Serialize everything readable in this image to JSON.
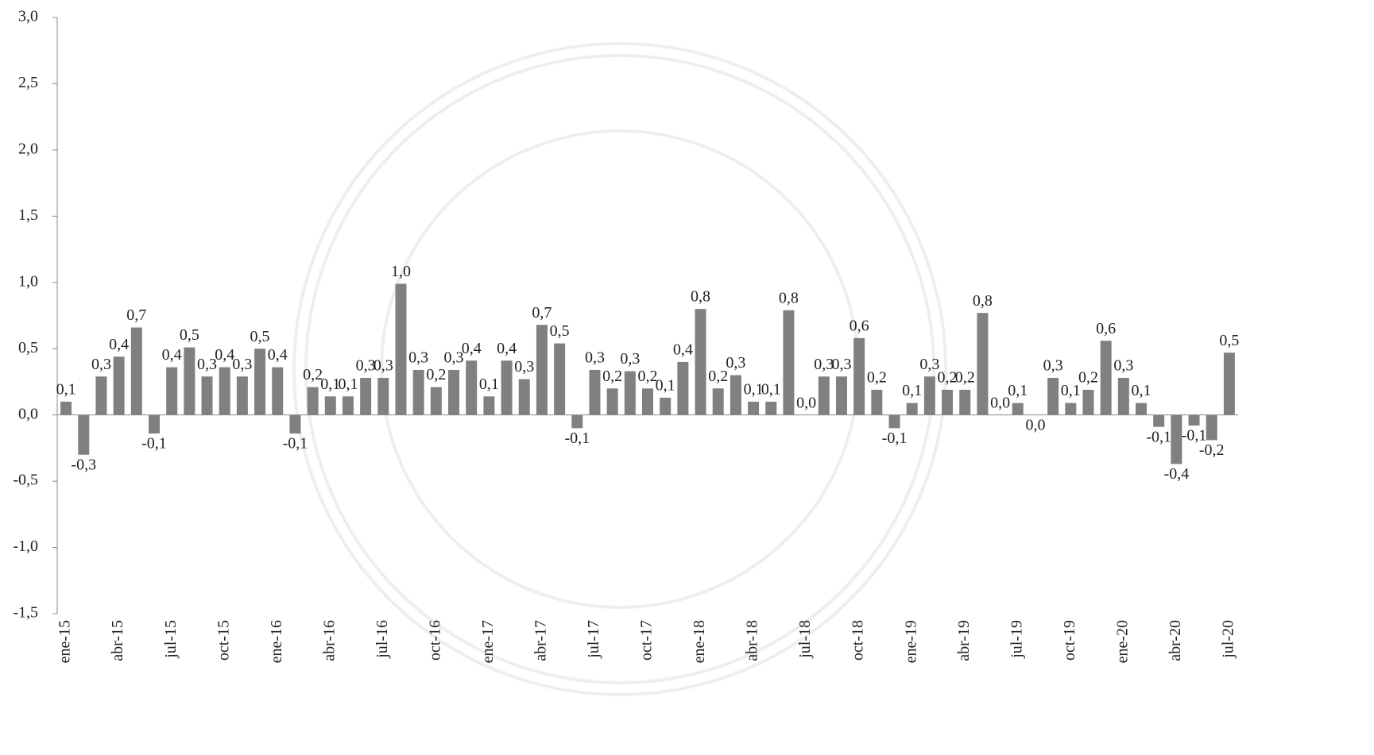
{
  "chart_data": {
    "type": "bar",
    "color": "#808080",
    "categories": [
      "ene-15",
      null,
      null,
      "abr-15",
      null,
      null,
      "jul-15",
      null,
      null,
      "oct-15",
      null,
      null,
      "ene-16",
      null,
      null,
      "abr-16",
      null,
      null,
      "jul-16",
      null,
      null,
      "oct-16",
      null,
      null,
      "ene-17",
      null,
      null,
      "abr-17",
      null,
      null,
      "jul-17",
      null,
      null,
      "oct-17",
      null,
      null,
      "ene-18",
      null,
      null,
      "abr-18",
      null,
      null,
      "jul-18",
      null,
      null,
      "oct-18",
      null,
      null,
      "ene-19",
      null,
      null,
      "abr-19",
      null,
      null,
      "jul-19",
      null,
      null,
      "oct-19",
      null,
      null,
      "ene-20",
      null,
      null,
      "abr-20",
      null,
      null,
      "jul-20"
    ],
    "values": [
      0.1,
      -0.3,
      0.29,
      0.44,
      0.66,
      -0.14,
      0.36,
      0.51,
      0.29,
      0.36,
      0.29,
      0.5,
      0.36,
      -0.14,
      0.21,
      0.14,
      0.14,
      0.28,
      0.28,
      0.99,
      0.34,
      0.21,
      0.34,
      0.41,
      0.14,
      0.41,
      0.27,
      0.68,
      0.54,
      -0.1,
      0.34,
      0.2,
      0.33,
      0.2,
      0.13,
      0.4,
      0.8,
      0.2,
      0.3,
      0.1,
      0.1,
      0.79,
      0.0,
      0.29,
      0.29,
      0.58,
      0.19,
      -0.1,
      0.09,
      0.29,
      0.19,
      0.19,
      0.77,
      0.0,
      0.09,
      0.0,
      0.28,
      0.09,
      0.19,
      0.56,
      0.28,
      0.09,
      -0.09,
      -0.37,
      -0.08,
      -0.19,
      0.47
    ],
    "value_labels": [
      "0,1",
      "-0,3",
      "0,3",
      "0,4",
      "0,7",
      "-0,1",
      "0,4",
      "0,5",
      "0,3",
      "0,4",
      "0,3",
      "0,5",
      "0,4",
      "-0,1",
      "0,2",
      "0,1",
      "0,1",
      "0,3",
      "0,3",
      "1,0",
      "0,3",
      "0,2",
      "0,3",
      "0,4",
      "0,1",
      "0,4",
      "0,3",
      "0,7",
      "0,5",
      "-0,1",
      "0,3",
      "0,2",
      "0,3",
      "0,2",
      "0,1",
      "0,4",
      "0,8",
      "0,2",
      "0,3",
      "0,1",
      "0,1",
      "0,8",
      "0,0",
      "0,3",
      "0,3",
      "0,6",
      "0,2",
      "-0,1",
      "0,1",
      "0,3",
      "0,2",
      "0,2",
      "0,8",
      "0,0",
      "0,1",
      "0,0",
      "0,3",
      "0,1",
      "0,2",
      "0,6",
      "0,3",
      "0,1",
      "-0,1",
      "-0,4",
      "-0,1",
      "-0,2",
      "0,5"
    ],
    "ylim": [
      -1.5,
      3.0
    ],
    "yticks": [
      {
        "value": -1.5,
        "label": "-1,5"
      },
      {
        "value": -1.0,
        "label": "-1,0"
      },
      {
        "value": -0.5,
        "label": "-0,5"
      },
      {
        "value": 0,
        "label": "0,0"
      },
      {
        "value": 0.5,
        "label": "0,5"
      },
      {
        "value": 1.0,
        "label": "1,0"
      },
      {
        "value": 1.5,
        "label": "1,5"
      },
      {
        "value": 2.0,
        "label": "2,0"
      },
      {
        "value": 2.5,
        "label": "2,5"
      },
      {
        "value": 3.0,
        "label": "3,0"
      }
    ]
  }
}
